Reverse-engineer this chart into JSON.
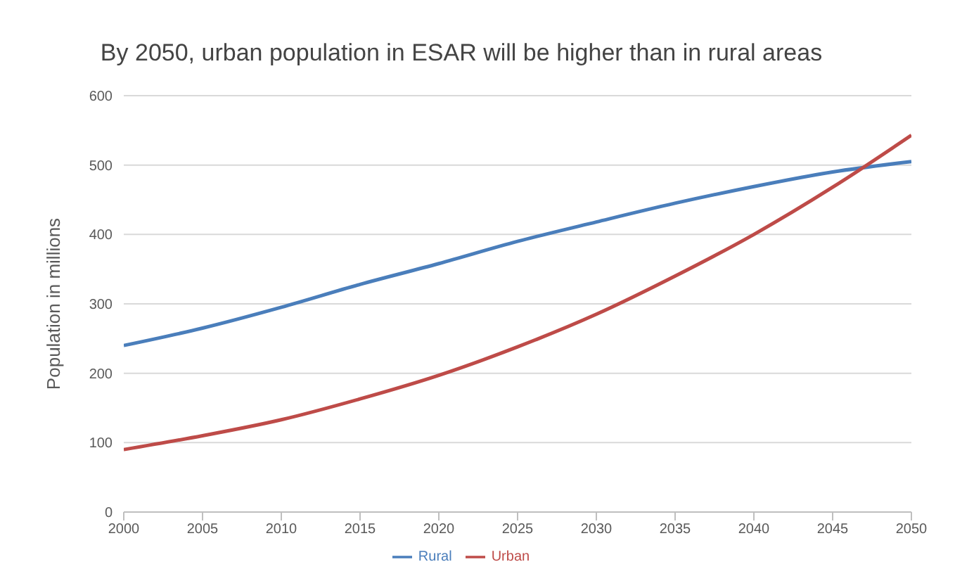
{
  "chart_data": {
    "type": "line",
    "title": "By 2050, urban population in ESAR will be higher than in rural areas",
    "ylabel": "Population in millions",
    "x": [
      2000,
      2005,
      2010,
      2015,
      2020,
      2025,
      2030,
      2035,
      2040,
      2045,
      2050
    ],
    "series": [
      {
        "name": "Rural",
        "color": "#4a7ebb",
        "values": [
          240,
          265,
          295,
          328,
          358,
          390,
          418,
          445,
          469,
          490,
          505
        ]
      },
      {
        "name": "Urban",
        "color": "#be4b48",
        "values": [
          90,
          110,
          133,
          163,
          197,
          238,
          285,
          340,
          400,
          468,
          543
        ]
      }
    ],
    "xlim": [
      2000,
      2050
    ],
    "xticks": [
      2000,
      2005,
      2010,
      2015,
      2020,
      2025,
      2030,
      2035,
      2040,
      2045,
      2050
    ],
    "ylim": [
      0,
      600
    ],
    "yticks": [
      0,
      100,
      200,
      300,
      400,
      500,
      600
    ],
    "grid": "y",
    "legend": "bottom",
    "marker": "none",
    "line_style": "solid"
  }
}
